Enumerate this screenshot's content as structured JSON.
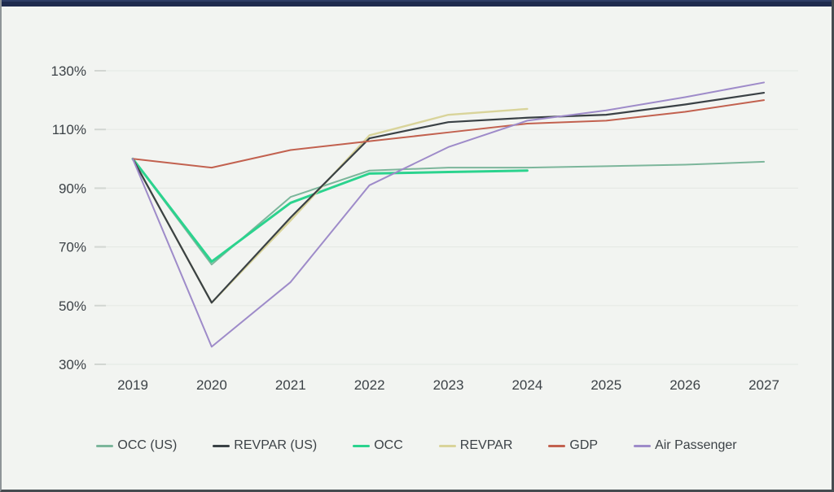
{
  "page": {
    "background": "#f2f4f1",
    "topbar_color": "#1f2b4e"
  },
  "chart_data": {
    "type": "line",
    "title": "",
    "xlabel": "",
    "ylabel": "",
    "categories": [
      "2019",
      "2020",
      "2021",
      "2022",
      "2023",
      "2024",
      "2025",
      "2026",
      "2027"
    ],
    "ylim": [
      30,
      130
    ],
    "grid": true,
    "legend_position": "bottom",
    "y_ticks": [
      {
        "value": 130,
        "label": "130%"
      },
      {
        "value": 110,
        "label": "110%"
      },
      {
        "value": 90,
        "label": "90%"
      },
      {
        "value": 70,
        "label": "70%"
      },
      {
        "value": 50,
        "label": "50%"
      },
      {
        "value": 30,
        "label": "30%"
      }
    ],
    "series": [
      {
        "name": "OCC (US)",
        "color": "#7cb69b",
        "line_width": 2,
        "z": 1,
        "values": [
          100,
          64,
          87,
          96,
          97,
          97,
          97.5,
          98,
          99
        ]
      },
      {
        "name": "REVPAR (US)",
        "color": "#3a4145",
        "line_width": 2.2,
        "z": 4,
        "values": [
          100,
          51,
          80,
          107,
          112.5,
          114,
          115,
          118.5,
          122.5
        ]
      },
      {
        "name": "OCC",
        "color": "#2bd38e",
        "line_width": 3,
        "z": 2,
        "values": [
          100,
          65,
          85,
          95,
          95.5,
          96,
          null,
          null,
          null
        ]
      },
      {
        "name": "REVPAR",
        "color": "#d9d49a",
        "line_width": 2.4,
        "z": 3,
        "values": [
          100,
          51,
          79,
          108,
          115,
          117,
          null,
          null,
          null
        ]
      },
      {
        "name": "GDP",
        "color": "#c2614f",
        "line_width": 2,
        "z": 5,
        "values": [
          100,
          97,
          103,
          106,
          109,
          112,
          113,
          116,
          120
        ]
      },
      {
        "name": "Air Passenger",
        "color": "#9e8bc9",
        "line_width": 2,
        "z": 6,
        "values": [
          100,
          36,
          58,
          91,
          104,
          113,
          116.5,
          121,
          126
        ]
      }
    ]
  }
}
